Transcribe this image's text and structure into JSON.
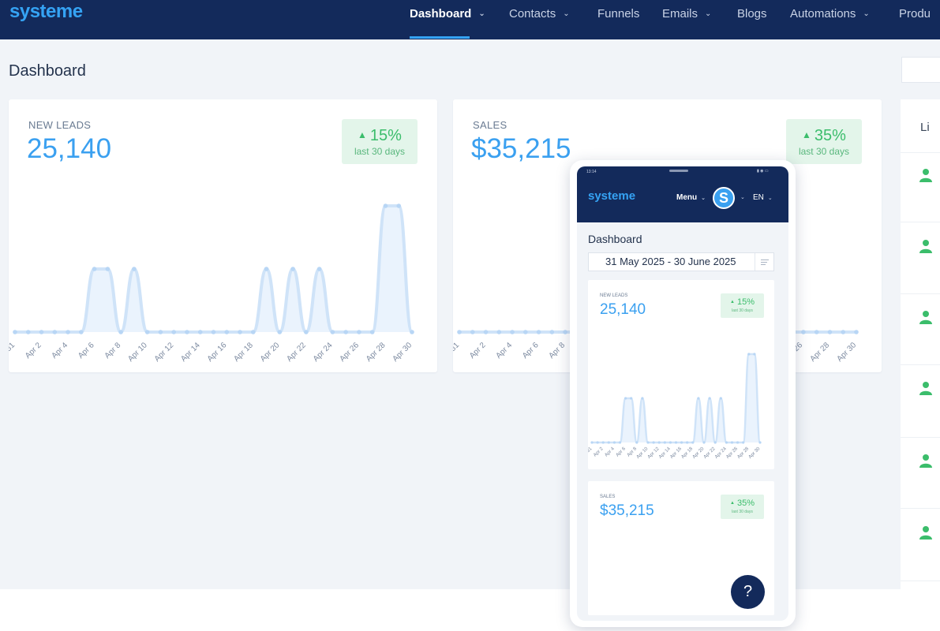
{
  "nav": {
    "logo": "systeme",
    "items": [
      {
        "label": "Dashboard",
        "dropdown": true,
        "active": true
      },
      {
        "label": "Contacts",
        "dropdown": true,
        "active": false
      },
      {
        "label": "Funnels",
        "dropdown": false,
        "active": false
      },
      {
        "label": "Emails",
        "dropdown": true,
        "active": false
      },
      {
        "label": "Blogs",
        "dropdown": false,
        "active": false
      },
      {
        "label": "Automations",
        "dropdown": true,
        "active": false
      },
      {
        "label": "Produ",
        "dropdown": false,
        "active": false
      }
    ],
    "chevron": "⌄"
  },
  "page": {
    "title": "Dashboard"
  },
  "cards": {
    "leads": {
      "label": "NEW LEADS",
      "value": "25,140",
      "trend_pct": "15%",
      "trend_period": "last 30 days",
      "trend_icon": "▲"
    },
    "sales": {
      "label": "SALES",
      "value": "$35,215",
      "trend_pct": "35%",
      "trend_period": "last 30 days",
      "trend_icon": "▲"
    }
  },
  "right_panel": {
    "title": "Li"
  },
  "colors": {
    "nav_bg": "#132a5b",
    "accent": "#3aa0f0",
    "positive": "#3bbd6b",
    "badge_bg": "#e3f5ea",
    "content_bg": "#f1f4f8"
  },
  "chart_data": [
    {
      "type": "line",
      "title": "",
      "x": [
        "Mar 31",
        "Apr 1",
        "Apr 2",
        "Apr 3",
        "Apr 4",
        "Apr 5",
        "Apr 6",
        "Apr 7",
        "Apr 8",
        "Apr 9",
        "Apr 10",
        "Apr 11",
        "Apr 12",
        "Apr 13",
        "Apr 14",
        "Apr 15",
        "Apr 16",
        "Apr 17",
        "Apr 18",
        "Apr 19",
        "Apr 20",
        "Apr 21",
        "Apr 22",
        "Apr 23",
        "Apr 24",
        "Apr 25",
        "Apr 26",
        "Apr 27",
        "Apr 28",
        "Apr 29",
        "Apr 30"
      ],
      "tick_labels": [
        "31",
        "Apr 2",
        "Apr 4",
        "Apr 6",
        "Apr 8",
        "Apr 10",
        "Apr 12",
        "Apr 14",
        "Apr 16",
        "Apr 18",
        "Apr 20",
        "Apr 22",
        "Apr 24",
        "Apr 26",
        "Apr 28",
        "Apr 30"
      ],
      "series": [
        {
          "values": [
            0,
            0,
            0,
            0,
            0,
            0,
            1,
            1,
            0,
            1,
            0,
            0,
            0,
            0,
            0,
            0,
            0,
            0,
            0,
            1,
            0,
            1,
            0,
            1,
            0,
            0,
            0,
            0,
            2,
            2,
            0
          ]
        }
      ],
      "ylim": [
        0,
        2
      ],
      "grid": false,
      "legend": "none"
    },
    {
      "type": "line",
      "title": "",
      "x": [
        "Mar 31",
        "Apr 1",
        "Apr 2",
        "Apr 3",
        "Apr 4",
        "Apr 5",
        "Apr 6",
        "Apr 7",
        "Apr 8",
        "Apr 9",
        "Apr 10",
        "Apr 11",
        "Apr 12",
        "Apr 13",
        "Apr 14",
        "Apr 15",
        "Apr 16",
        "Apr 17",
        "Apr 18",
        "Apr 19",
        "Apr 20",
        "Apr 21",
        "Apr 22",
        "Apr 23",
        "Apr 24",
        "Apr 25",
        "Apr 26",
        "Apr 27",
        "Apr 28",
        "Apr 29",
        "Apr 30"
      ],
      "tick_labels": [
        "31",
        "Apr 2",
        "Apr 4",
        "Apr 6",
        "Apr 8",
        "26",
        "Apr 28",
        "Apr 30"
      ],
      "series": [
        {
          "values": [
            0,
            0,
            0,
            0,
            0,
            0,
            0,
            0,
            0,
            0,
            0,
            0,
            0,
            0,
            0,
            0,
            0,
            0,
            0,
            0,
            0,
            0,
            0,
            0,
            0,
            0,
            0,
            0,
            0,
            0,
            0
          ]
        }
      ],
      "ylim": [
        0,
        2
      ],
      "grid": false,
      "legend": "none"
    }
  ],
  "phone": {
    "status": {
      "time": "13:14",
      "icons": "▮ ◉ ▭"
    },
    "logo": "systeme",
    "menu_label": "Menu",
    "avatar_letter": "S",
    "language": "EN",
    "page_title": "Dashboard",
    "date_range": "31 May 2025 - 30 June 2025",
    "leads": {
      "label": "NEW LEADS",
      "value": "25,140",
      "trend_pct": "15%",
      "trend_period": "last 30 days"
    },
    "sales": {
      "label": "SALES",
      "value": "$35,215",
      "trend_pct": "35%",
      "trend_period": "last 30 days"
    },
    "help_label": "?",
    "chart_data": {
      "type": "line",
      "title": "",
      "tick_labels": [
        "31",
        "Apr 2",
        "Apr 4",
        "Apr 6",
        "Apr 8",
        "Apr 10",
        "Apr 12",
        "Apr 14",
        "Apr 16",
        "Apr 18",
        "Apr 20",
        "Apr 22",
        "Apr 24",
        "Apr 26",
        "Apr 28",
        "Apr 30"
      ],
      "series": [
        {
          "values": [
            0,
            0,
            0,
            0,
            0,
            0,
            1,
            1,
            0,
            1,
            0,
            0,
            0,
            0,
            0,
            0,
            0,
            0,
            0,
            1,
            0,
            1,
            0,
            1,
            0,
            0,
            0,
            0,
            2,
            2,
            0
          ]
        }
      ],
      "ylim": [
        0,
        2
      ]
    }
  }
}
